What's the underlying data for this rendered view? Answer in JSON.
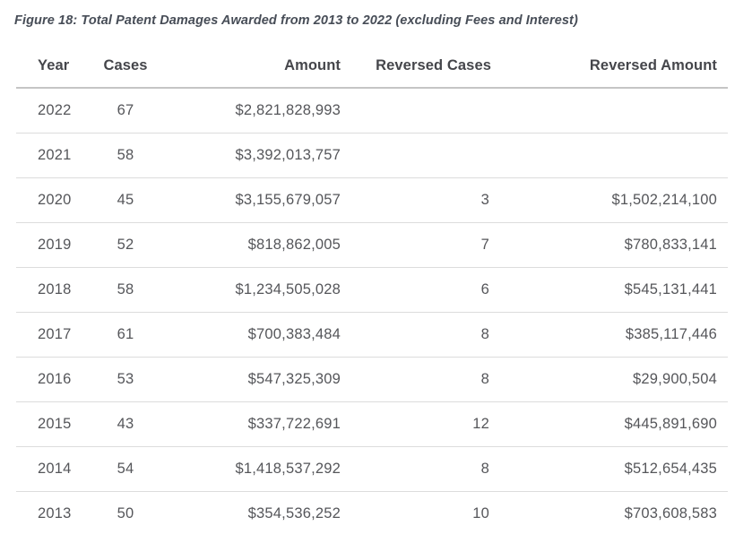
{
  "figure_title": "Figure 18: Total Patent Damages Awarded from 2013 to 2022 (excluding Fees and Interest)",
  "table": {
    "columns": [
      "Year",
      "Cases",
      "Amount",
      "Reversed Cases",
      "Reversed Amount"
    ],
    "column_keys": [
      "year",
      "cases",
      "amount",
      "reversed-cases",
      "reversed-amount"
    ],
    "rows": [
      [
        "2022",
        "67",
        "$2,821,828,993",
        "",
        ""
      ],
      [
        "2021",
        "58",
        "$3,392,013,757",
        "",
        ""
      ],
      [
        "2020",
        "45",
        "$3,155,679,057",
        "3",
        "$1,502,214,100"
      ],
      [
        "2019",
        "52",
        "$818,862,005",
        "7",
        "$780,833,141"
      ],
      [
        "2018",
        "58",
        "$1,234,505,028",
        "6",
        "$545,131,441"
      ],
      [
        "2017",
        "61",
        "$700,383,484",
        "8",
        "$385,117,446"
      ],
      [
        "2016",
        "53",
        "$547,325,309",
        "8",
        "$29,900,504"
      ],
      [
        "2015",
        "43",
        "$337,722,691",
        "12",
        "$445,891,690"
      ],
      [
        "2014",
        "54",
        "$1,418,537,292",
        "8",
        "$512,654,435"
      ],
      [
        "2013",
        "50",
        "$354,536,252",
        "10",
        "$703,608,583"
      ]
    ]
  },
  "chart_data": {
    "type": "table",
    "title": "Figure 18: Total Patent Damages Awarded from 2013 to 2022 (excluding Fees and Interest)",
    "columns": [
      "Year",
      "Cases",
      "Amount",
      "Reversed Cases",
      "Reversed Amount"
    ],
    "rows": [
      {
        "year": 2022,
        "cases": 67,
        "amount": 2821828993,
        "reversed_cases": null,
        "reversed_amount": null
      },
      {
        "year": 2021,
        "cases": 58,
        "amount": 3392013757,
        "reversed_cases": null,
        "reversed_amount": null
      },
      {
        "year": 2020,
        "cases": 45,
        "amount": 3155679057,
        "reversed_cases": 3,
        "reversed_amount": 1502214100
      },
      {
        "year": 2019,
        "cases": 52,
        "amount": 818862005,
        "reversed_cases": 7,
        "reversed_amount": 780833141
      },
      {
        "year": 2018,
        "cases": 58,
        "amount": 1234505028,
        "reversed_cases": 6,
        "reversed_amount": 545131441
      },
      {
        "year": 2017,
        "cases": 61,
        "amount": 700383484,
        "reversed_cases": 8,
        "reversed_amount": 385117446
      },
      {
        "year": 2016,
        "cases": 53,
        "amount": 547325309,
        "reversed_cases": 8,
        "reversed_amount": 29900504
      },
      {
        "year": 2015,
        "cases": 43,
        "amount": 337722691,
        "reversed_cases": 12,
        "reversed_amount": 445891690
      },
      {
        "year": 2014,
        "cases": 54,
        "amount": 1418537292,
        "reversed_cases": 8,
        "reversed_amount": 512654435
      },
      {
        "year": 2013,
        "cases": 50,
        "amount": 354536252,
        "reversed_cases": 10,
        "reversed_amount": 703608583
      }
    ]
  },
  "colors": {
    "background": "#ffffff",
    "title_text": "#474d57",
    "header_text": "#45464b",
    "body_text": "#55565a",
    "header_border": "#c5c5c5",
    "row_border": "#dcdcdc"
  }
}
